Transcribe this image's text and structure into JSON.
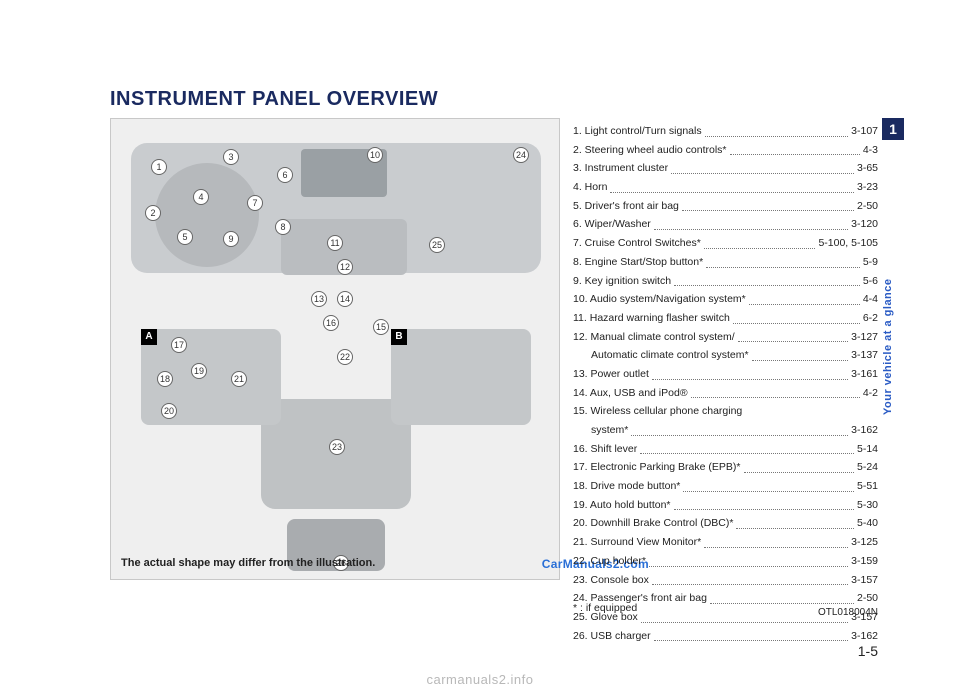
{
  "title": "INSTRUMENT PANEL OVERVIEW",
  "chapter_tab": "1",
  "side_label": "Your vehicle at a glance",
  "page_number": "1-5",
  "figure": {
    "caption": "The actual shape may differ from the illustration.",
    "watermark": "CarManuals2.com",
    "code": "OTL018004N",
    "callout_letters": [
      "A",
      "B"
    ],
    "callout_numbers_visible": [
      "1",
      "2",
      "3",
      "4",
      "5",
      "6",
      "7",
      "8",
      "9",
      "10",
      "11",
      "12",
      "13",
      "14",
      "15",
      "16",
      "17",
      "18",
      "19",
      "20",
      "21",
      "22",
      "23",
      "24",
      "25",
      "26"
    ]
  },
  "footnote": "* : if equipped",
  "bottom_watermark": "carmanuals2.info",
  "items": [
    {
      "label": "1. Light control/Turn signals",
      "page": "3-107"
    },
    {
      "label": "2. Steering wheel audio controls*",
      "page": "4-3"
    },
    {
      "label": "3. Instrument cluster",
      "page": "3-65"
    },
    {
      "label": "4. Horn",
      "page": "3-23"
    },
    {
      "label": "5. Driver's front air bag",
      "page": "2-50"
    },
    {
      "label": "6. Wiper/Washer",
      "page": "3-120"
    },
    {
      "label": "7. Cruise Control Switches*",
      "page": "5-100, 5-105"
    },
    {
      "label": "8. Engine Start/Stop button*",
      "page": "5-9"
    },
    {
      "label": "9. Key ignition switch",
      "page": "5-6"
    },
    {
      "label": "10. Audio system/Navigation system*",
      "page": "4-4"
    },
    {
      "label": "11. Hazard warning flasher switch",
      "page": "6-2"
    },
    {
      "label": "12. Manual climate control system/",
      "page": "3-127"
    },
    {
      "label_sub": "Automatic climate control system*",
      "page": "3-137"
    },
    {
      "label": "13. Power outlet",
      "page": "3-161"
    },
    {
      "label": "14. Aux, USB and iPod®",
      "page": "4-2"
    },
    {
      "label": "15. Wireless cellular phone charging",
      "page": ""
    },
    {
      "label_sub": "system*",
      "page": "3-162"
    },
    {
      "label": "16. Shift lever",
      "page": "5-14"
    },
    {
      "label": "17. Electronic Parking Brake (EPB)*",
      "page": "5-24"
    },
    {
      "label": "18. Drive mode button*",
      "page": "5-51"
    },
    {
      "label": "19. Auto hold button*",
      "page": "5-30"
    },
    {
      "label": "20. Downhill Brake Control (DBC)*",
      "page": "5-40"
    },
    {
      "label": "21. Surround View Monitor*",
      "page": "3-125"
    },
    {
      "label": "22. Cup holder*",
      "page": "3-159"
    },
    {
      "label": "23. Console box",
      "page": "3-157"
    },
    {
      "label": "24. Passenger's front air bag",
      "page": "2-50"
    },
    {
      "label": "25. Glove box",
      "page": "3-157"
    },
    {
      "label": "26. USB charger",
      "page": "3-162"
    }
  ]
}
